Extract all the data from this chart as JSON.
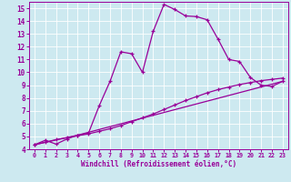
{
  "xlabel": "Windchill (Refroidissement éolien,°C)",
  "xlim": [
    -0.5,
    23.5
  ],
  "ylim": [
    4,
    15.5
  ],
  "xticks": [
    0,
    1,
    2,
    3,
    4,
    5,
    6,
    7,
    8,
    9,
    10,
    11,
    12,
    13,
    14,
    15,
    16,
    17,
    18,
    19,
    20,
    21,
    22,
    23
  ],
  "yticks": [
    4,
    5,
    6,
    7,
    8,
    9,
    10,
    11,
    12,
    13,
    14,
    15
  ],
  "bg_color": "#cde9f0",
  "line_color": "#990099",
  "line1_x": [
    0,
    1,
    2,
    3,
    4,
    5,
    6,
    7,
    8,
    9,
    10,
    11,
    12,
    13,
    14,
    15,
    16,
    17,
    18,
    19,
    20,
    21,
    22,
    23
  ],
  "line1_y": [
    4.35,
    4.7,
    4.4,
    4.8,
    5.1,
    5.25,
    7.4,
    9.3,
    11.6,
    11.45,
    10.0,
    13.2,
    15.3,
    14.9,
    14.4,
    14.35,
    14.1,
    12.6,
    11.0,
    10.85,
    9.6,
    9.0,
    8.9,
    9.3
  ],
  "line2_x": [
    0,
    1,
    2,
    3,
    4,
    5,
    6,
    7,
    8,
    9,
    10,
    11,
    12,
    13,
    14,
    15,
    16,
    17,
    18,
    19,
    20,
    21,
    22,
    23
  ],
  "line2_y": [
    4.35,
    4.55,
    4.75,
    4.9,
    5.05,
    5.2,
    5.4,
    5.6,
    5.85,
    6.15,
    6.45,
    6.75,
    7.1,
    7.45,
    7.8,
    8.1,
    8.4,
    8.65,
    8.85,
    9.05,
    9.2,
    9.35,
    9.45,
    9.55
  ],
  "line3_x": [
    0,
    4,
    23
  ],
  "line3_y": [
    4.35,
    5.1,
    9.3
  ]
}
